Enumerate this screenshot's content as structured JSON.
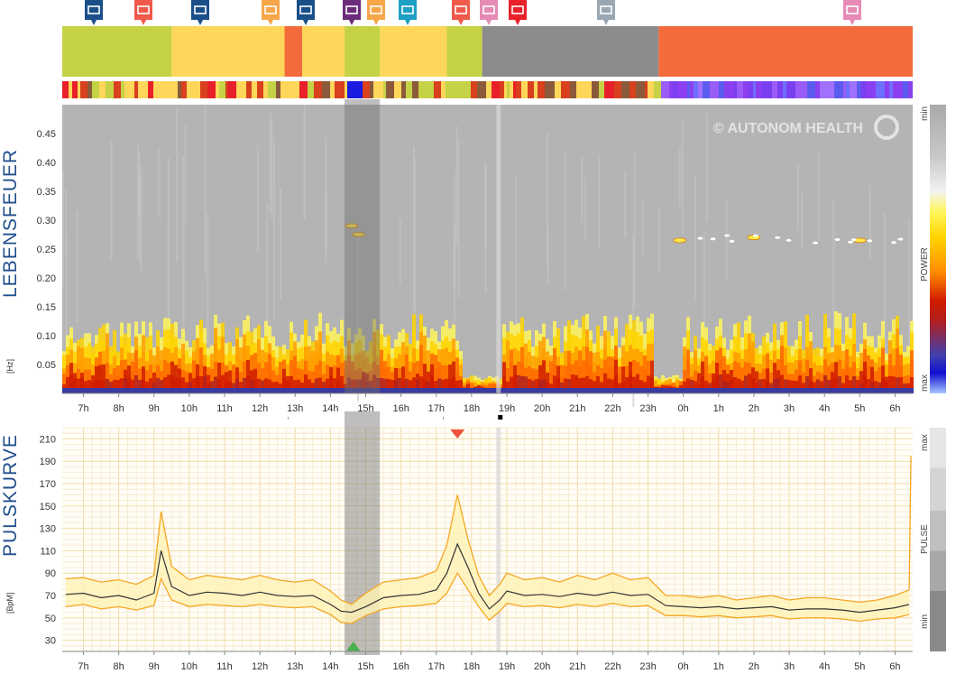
{
  "titles": {
    "spectrogram": "LEBENSFEUER",
    "pulse": "PULSKURVE",
    "spectrogram_unit": "[Hz]",
    "pulse_unit": "[BpM]",
    "watermark": "© AUTONOM HEALTH"
  },
  "scales": {
    "power_label": "POWER",
    "power_min": "min",
    "power_max": "max",
    "pulse_label": "PULSE",
    "pulse_max": "max",
    "pulse_min": "min"
  },
  "colors": {
    "green": "#c5d246",
    "yellow": "#fdd65a",
    "orange": "#f36b3c",
    "gray": "#8c8c8c",
    "spectro_bg": "#b4b4b4",
    "pulse_mean": "#333333",
    "pulse_band": "#f5a623",
    "marker_blue": "#1a4f8a",
    "marker_red": "#ef5a4b",
    "marker_orange": "#f7a64a",
    "marker_purple": "#6a2b7a",
    "marker_teal": "#1e9fc4",
    "marker_pink": "#e68bb5",
    "marker_gray": "#9aa7b2",
    "marker_crimson": "#e8202a"
  },
  "activity_markers": [
    {
      "icon": "keyboard-icon",
      "color": "marker_blue"
    },
    {
      "icon": "walking-icon",
      "color": "marker_red"
    },
    {
      "icon": "keyboard-icon",
      "color": "marker_blue"
    },
    {
      "icon": "meal-icon",
      "color": "marker_orange"
    },
    {
      "icon": "keyboard-icon",
      "color": "marker_blue"
    },
    {
      "icon": "rest-icon",
      "color": "marker_purple"
    },
    {
      "icon": "meal-icon",
      "color": "marker_orange"
    },
    {
      "icon": "meeting-icon",
      "color": "marker_teal"
    },
    {
      "icon": "walking-icon",
      "color": "marker_red"
    },
    {
      "icon": "bath-icon",
      "color": "marker_pink"
    },
    {
      "icon": "question-icon",
      "color": "marker_crimson"
    },
    {
      "icon": "monitor-icon",
      "color": "marker_gray"
    },
    {
      "icon": "bed-icon",
      "color": "marker_pink"
    }
  ],
  "time_axis": [
    "7h",
    "8h",
    "9h",
    "10h",
    "11h",
    "12h",
    "13h",
    "14h",
    "15h",
    "16h",
    "17h",
    "18h",
    "19h",
    "20h",
    "21h",
    "22h",
    "23h",
    "0h",
    "1h",
    "2h",
    "3h",
    "4h",
    "5h",
    "6h"
  ],
  "chart_data": [
    {
      "type": "heatmap",
      "title": "LEBENSFEUER",
      "ylabel": "[Hz]",
      "y_ticks": [
        0.05,
        0.1,
        0.15,
        0.2,
        0.25,
        0.3,
        0.35,
        0.4,
        0.45
      ],
      "y_tick_labels": [
        "0.05",
        "0.10",
        "0.15",
        "0.20",
        "0.25",
        "0.30",
        "0.35",
        "0.40",
        "0.45"
      ],
      "ylim": [
        0,
        0.5
      ],
      "x_tick_labels": [
        "7h",
        "8h",
        "9h",
        "10h",
        "11h",
        "12h",
        "13h",
        "14h",
        "15h",
        "16h",
        "17h",
        "18h",
        "19h",
        "20h",
        "21h",
        "22h",
        "23h",
        "0h",
        "1h",
        "2h",
        "3h",
        "4h",
        "5h",
        "6h"
      ],
      "colorbar": "POWER",
      "highlight_points_hz": [
        {
          "time": "14.6h",
          "hz": 0.29
        },
        {
          "time": "14.8h",
          "hz": 0.275
        },
        {
          "time": "23.9h",
          "hz": 0.265
        },
        {
          "time": "2.0h",
          "hz": 0.27
        },
        {
          "time": "5.0h",
          "hz": 0.265
        }
      ]
    },
    {
      "type": "line",
      "title": "PULSKURVE",
      "ylabel": "[BpM]",
      "y_ticks": [
        30,
        50,
        70,
        90,
        110,
        130,
        150,
        170,
        190,
        210
      ],
      "y_tick_labels": [
        "30",
        "50",
        "70",
        "90",
        "110",
        "130",
        "150",
        "170",
        "190",
        "210"
      ],
      "ylim": [
        20,
        220
      ],
      "x_tick_labels": [
        "7h",
        "8h",
        "9h",
        "10h",
        "11h",
        "12h",
        "13h",
        "14h",
        "15h",
        "16h",
        "17h",
        "18h",
        "19h",
        "20h",
        "21h",
        "22h",
        "23h",
        "0h",
        "1h",
        "2h",
        "3h",
        "4h",
        "5h",
        "6h"
      ],
      "x_hours": [
        6.5,
        7,
        7.5,
        8,
        8.5,
        9,
        9.2,
        9.5,
        10,
        10.5,
        11,
        11.5,
        12,
        12.5,
        13,
        13.5,
        14,
        14.3,
        14.6,
        15,
        15.5,
        16,
        16.5,
        17,
        17.3,
        17.6,
        17.9,
        18.2,
        18.5,
        18.8,
        19,
        19.5,
        20,
        20.5,
        21,
        21.5,
        22,
        22.5,
        23,
        23.5,
        24,
        24.5,
        25,
        25.5,
        26,
        26.5,
        27,
        27.5,
        28,
        28.5,
        29,
        29.5,
        30,
        30.4
      ],
      "series": [
        {
          "values": [
            71,
            72,
            68,
            70,
            66,
            72,
            110,
            78,
            70,
            73,
            72,
            70,
            73,
            70,
            69,
            70,
            62,
            56,
            55,
            60,
            68,
            70,
            71,
            75,
            90,
            116,
            95,
            72,
            58,
            66,
            74,
            70,
            71,
            69,
            72,
            70,
            73,
            70,
            71,
            61,
            60,
            59,
            60,
            58,
            59,
            60,
            57,
            58,
            58,
            57,
            55,
            57,
            59,
            62
          ]
        },
        {
          "values": [
            85,
            86,
            82,
            84,
            80,
            88,
            145,
            96,
            84,
            88,
            86,
            84,
            88,
            84,
            82,
            84,
            74,
            66,
            62,
            72,
            82,
            84,
            86,
            92,
            115,
            160,
            120,
            88,
            70,
            80,
            90,
            84,
            86,
            82,
            88,
            84,
            90,
            84,
            86,
            70,
            70,
            68,
            70,
            66,
            68,
            70,
            66,
            68,
            68,
            66,
            64,
            66,
            70,
            75
          ]
        },
        {
          "values": [
            60,
            62,
            58,
            60,
            57,
            61,
            85,
            66,
            60,
            62,
            61,
            60,
            62,
            60,
            59,
            60,
            53,
            46,
            45,
            52,
            58,
            60,
            61,
            63,
            72,
            90,
            75,
            60,
            48,
            56,
            63,
            60,
            61,
            59,
            62,
            60,
            63,
            60,
            61,
            52,
            52,
            51,
            52,
            50,
            51,
            52,
            49,
            50,
            50,
            49,
            47,
            49,
            50,
            53
          ]
        }
      ]
    }
  ]
}
